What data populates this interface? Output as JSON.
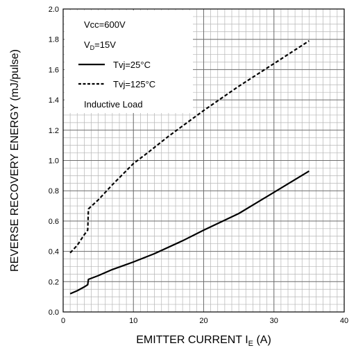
{
  "chart_data": {
    "type": "line",
    "xlabel": {
      "main": "EMITTER CURRENT I",
      "subscript": "E",
      "unit": " (A)"
    },
    "ylabel": "REVERSE RECOVERY ENERGY (mJ/pulse)",
    "xlim": [
      0,
      40
    ],
    "ylim": [
      0,
      2.0
    ],
    "x_ticks": [
      0,
      10,
      20,
      30,
      40
    ],
    "y_ticks": [
      0.0,
      0.2,
      0.4,
      0.6,
      0.8,
      1.0,
      1.2,
      1.4,
      1.6,
      1.8,
      2.0
    ],
    "x_tick_labels": [
      "0",
      "10",
      "20",
      "30",
      "40"
    ],
    "y_tick_labels": [
      "0.0",
      "0.2",
      "0.4",
      "0.6",
      "0.8",
      "1.0",
      "1.2",
      "1.4",
      "1.6",
      "1.8",
      "2.0"
    ],
    "grid": true,
    "legend": {
      "placement": "top-left",
      "conditions": [
        {
          "main": "Vcc=600V",
          "subscript": ""
        },
        {
          "main": "V",
          "subscript": "D",
          "rest": "=15V"
        }
      ],
      "footer": "Inductive Load"
    },
    "series": [
      {
        "name": "Tvj=25°C",
        "style": "solid",
        "color": "#000000",
        "x": [
          1.0,
          2.0,
          3.0,
          3.5,
          3.6,
          5.0,
          7.0,
          10.0,
          13.0,
          17.0,
          20.0,
          25.0,
          30.0,
          35.0
        ],
        "y": [
          0.12,
          0.14,
          0.165,
          0.18,
          0.215,
          0.24,
          0.28,
          0.33,
          0.385,
          0.47,
          0.54,
          0.65,
          0.79,
          0.93
        ]
      },
      {
        "name": "Tvj=125°C",
        "style": "dashed",
        "color": "#000000",
        "x": [
          1.0,
          2.0,
          3.0,
          3.5,
          3.6,
          5.0,
          7.0,
          10.0,
          12.0,
          15.0,
          20.0,
          25.0,
          30.0,
          35.0
        ],
        "y": [
          0.39,
          0.44,
          0.51,
          0.54,
          0.68,
          0.74,
          0.84,
          0.98,
          1.05,
          1.16,
          1.33,
          1.49,
          1.64,
          1.79
        ]
      }
    ]
  }
}
